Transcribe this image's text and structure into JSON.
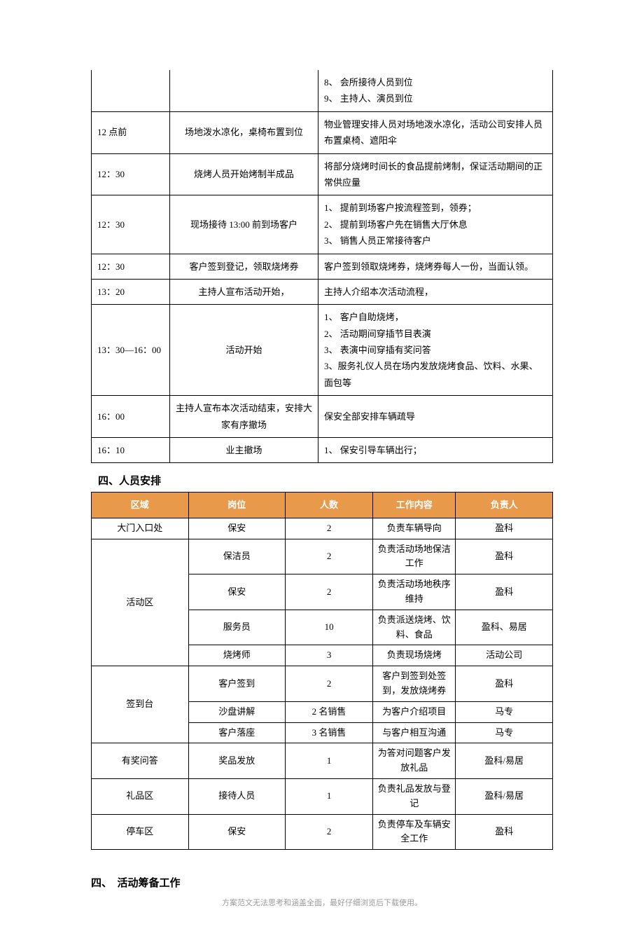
{
  "schedule": {
    "rows": [
      {
        "time": "",
        "task": "",
        "detail_items": [
          "8、 会所接待人员到位",
          "9、 主持人、演员到位"
        ],
        "show_empty_left": true
      },
      {
        "time": "12 点前",
        "task": "场地泼水凉化，桌椅布置到位",
        "detail_text": "物业管理安排人员对场地泼水凉化，活动公司安排人员布置桌椅、遮阳伞"
      },
      {
        "time": "12：30",
        "task": "烧烤人员开始烤制半成品",
        "detail_text": "将部分烧烤时间长的食品提前烤制，保证活动期间的正常供应量"
      },
      {
        "time": "12：30",
        "task": "现场接待 13:00 前到场客户",
        "detail_items": [
          "1、 提前到场客户按流程签到，领券；",
          "2、 提前到场客户先在销售大厅休息",
          "3、 销售人员正常接待客户"
        ]
      },
      {
        "time": "12：30",
        "task": "客户签到登记，领取烧烤券",
        "detail_text": "客户签到领取烧烤券，烧烤券每人一份，当面认领。"
      },
      {
        "time": "13：20",
        "task": "主持人宣布活动开始，",
        "detail_text": "主持人介绍本次活动流程，"
      },
      {
        "time": "13：30—16：00",
        "task": "活动开始",
        "detail_items": [
          "1、 客户自助烧烤，",
          "2、 活动期间穿插节目表演",
          "3、 表演中间穿插有奖问答",
          "3、服务礼仪人员在场内发放烧烤食品、饮料、水果、面包等"
        ]
      },
      {
        "time": "16：00",
        "task": "主持人宣布本次活动结束，安排大家有序撤场",
        "detail_text": "保安全部安排车辆疏导"
      },
      {
        "time": "16：10",
        "task": "业主撤场",
        "detail_items": [
          "1、 保安引导车辆出行；"
        ]
      }
    ]
  },
  "heading_staff": "四、人员安排",
  "staff": {
    "columns": [
      "区域",
      "岗位",
      "人数",
      "工作内容",
      "负责人"
    ],
    "header_bg": "#e8994a",
    "header_color": "#ffffff",
    "rows": [
      {
        "area": "大门入口处",
        "role": "保安",
        "count": "2",
        "work": "负责车辆导向",
        "owner": "盈科"
      },
      {
        "area": "活动区",
        "rowspan": 4,
        "role": "保洁员",
        "count": "2",
        "work": "负责活动场地保洁工作",
        "owner": "盈科"
      },
      {
        "role": "保安",
        "count": "2",
        "work": "负责活动场地秩序维持",
        "owner": "盈科"
      },
      {
        "role": "服务员",
        "count": "10",
        "work": "负责派送烧烤、饮料、食品",
        "owner": "盈科、易居"
      },
      {
        "role": "烧烤师",
        "count": "3",
        "work": "负责现场烧烤",
        "owner": "活动公司"
      },
      {
        "area": "签到台",
        "rowspan": 3,
        "role": "客户签到",
        "count": "2",
        "work": "客户到签到处签到，发放烧烤券",
        "owner": "盈科"
      },
      {
        "role": "沙盘讲解",
        "count": "2 名销售",
        "work": "为客户介绍项目",
        "owner": "马专"
      },
      {
        "role": "客户落座",
        "count": "3 名销售",
        "work": "与客户相互沟通",
        "owner": "马专"
      },
      {
        "area": "有奖问答",
        "role": "奖品发放",
        "count": "1",
        "work": "为答对问题客户发放礼品",
        "owner": "盈科/易居"
      },
      {
        "area": "礼品区",
        "role": "接待人员",
        "count": "1",
        "work": "负责礼品发放与登记",
        "owner": "盈科/易居"
      },
      {
        "area": "停车区",
        "role": "保安",
        "count": "2",
        "work": "负责停车及车辆安全工作",
        "owner": "盈科"
      }
    ]
  },
  "heading_prep": "四、　活动筹备工作",
  "footer_text": "方案范文无法思考和涵盖全面，最好仔细浏览后下载使用。"
}
